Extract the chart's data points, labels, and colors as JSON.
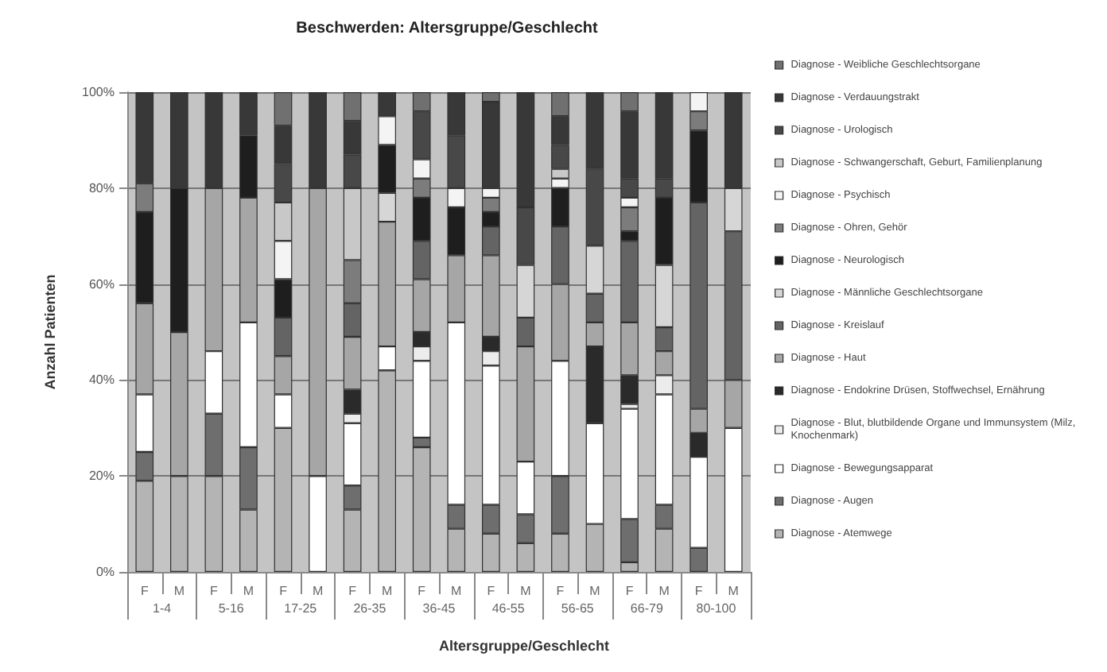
{
  "chart_data": {
    "type": "bar",
    "stacked": true,
    "title": "Beschwerden: Altersgruppe/Geschlecht",
    "xlabel": "Altersgruppe/Geschlecht",
    "ylabel": "Anzahl Patienten",
    "categories": [
      "F",
      "M",
      "F",
      "M",
      "F",
      "M",
      "F",
      "M",
      "F",
      "M",
      "F",
      "M",
      "F",
      "M",
      "F",
      "M",
      "F",
      "M"
    ],
    "annotations": [
      "1-4",
      "5-16",
      "17-25",
      "26-35",
      "36-45",
      "46-55",
      "56-65",
      "66-79",
      "80-100"
    ],
    "ylim": [
      0,
      100
    ],
    "yticks": [
      {
        "value": 0,
        "label": "0%"
      },
      {
        "value": 20,
        "label": "20%"
      },
      {
        "value": 40,
        "label": "40%"
      },
      {
        "value": 60,
        "label": "60%"
      },
      {
        "value": 80,
        "label": "80%"
      },
      {
        "value": 100,
        "label": "100%"
      }
    ],
    "grid": "y",
    "legend": "right",
    "series": [
      {
        "name": "Diagnose - Atemwege",
        "color": "#b4b4b4",
        "values": [
          19,
          20,
          20,
          13,
          30,
          null,
          13,
          42,
          26,
          9,
          8,
          6,
          8,
          10,
          2,
          9,
          null,
          null
        ]
      },
      {
        "name": "Diagnose - Augen",
        "color": "#6e6e6e",
        "values": [
          6,
          null,
          13,
          13,
          null,
          null,
          5,
          null,
          2,
          5,
          6,
          6,
          12,
          null,
          9,
          5,
          5,
          null
        ]
      },
      {
        "name": "Diagnose - Bewegungsapparat",
        "color": "#ffffff",
        "values": [
          12,
          null,
          13,
          26,
          7,
          20,
          13,
          5,
          16,
          38,
          29,
          11,
          24,
          21,
          23,
          23,
          19,
          30
        ]
      },
      {
        "name": "Diagnose - Blut, blutbildende Organe und Immunsystem (Milz, Knochenmark)",
        "color": "#ececec",
        "values": [
          null,
          null,
          null,
          null,
          null,
          null,
          2,
          null,
          3,
          null,
          3,
          null,
          null,
          null,
          1,
          4,
          null,
          null
        ]
      },
      {
        "name": "Diagnose - Endokrine Drüsen, Stoffwechsel, Ernährung",
        "color": "#2a2a2a",
        "values": [
          null,
          null,
          null,
          null,
          null,
          null,
          5,
          null,
          3,
          null,
          3,
          null,
          null,
          16,
          6,
          null,
          5,
          null
        ]
      },
      {
        "name": "Diagnose - Haut",
        "color": "#a6a6a6",
        "values": [
          19,
          30,
          34,
          26,
          8,
          60,
          11,
          26,
          11,
          14,
          17,
          24,
          16,
          5,
          11,
          5,
          5,
          10
        ]
      },
      {
        "name": "Diagnose - Kreislauf",
        "color": "#646464",
        "values": [
          null,
          null,
          null,
          null,
          8,
          null,
          7,
          null,
          8,
          null,
          6,
          6,
          12,
          6,
          17,
          5,
          43,
          31
        ]
      },
      {
        "name": "Diagnose - Männliche Geschlechtsorgane",
        "color": "#d6d6d6",
        "values": [
          null,
          null,
          null,
          null,
          null,
          null,
          null,
          6,
          null,
          null,
          null,
          11,
          null,
          10,
          null,
          13,
          null,
          9
        ]
      },
      {
        "name": "Diagnose - Neurologisch",
        "color": "#1e1e1e",
        "values": [
          19,
          30,
          null,
          13,
          8,
          null,
          null,
          10,
          9,
          10,
          3,
          null,
          8,
          null,
          2,
          14,
          15,
          null
        ]
      },
      {
        "name": "Diagnose - Ohren, Gehör",
        "color": "#7c7c7c",
        "values": [
          6,
          null,
          null,
          null,
          null,
          null,
          9,
          null,
          4,
          null,
          3,
          null,
          null,
          null,
          5,
          null,
          4,
          null
        ]
      },
      {
        "name": "Diagnose - Psychisch",
        "color": "#f4f4f4",
        "values": [
          null,
          null,
          null,
          null,
          8,
          null,
          null,
          6,
          4,
          4,
          2,
          null,
          2,
          null,
          2,
          null,
          4,
          null
        ]
      },
      {
        "name": "Diagnose - Schwangerschaft, Geburt, Familienplanung",
        "color": "#c8c8c8",
        "values": [
          null,
          null,
          null,
          null,
          8,
          null,
          15,
          null,
          null,
          null,
          null,
          null,
          2,
          null,
          null,
          null,
          null,
          null
        ]
      },
      {
        "name": "Diagnose - Urologisch",
        "color": "#484848",
        "values": [
          null,
          null,
          null,
          null,
          8,
          null,
          7,
          null,
          10,
          11,
          null,
          12,
          5,
          16,
          4,
          4,
          null,
          null
        ]
      },
      {
        "name": "Diagnose - Verdauungstrakt",
        "color": "#383838",
        "values": [
          19,
          20,
          20,
          9,
          8,
          20,
          7,
          5,
          null,
          9,
          18,
          24,
          6,
          16,
          14,
          18,
          null,
          20
        ]
      },
      {
        "name": "Diagnose - Weibliche Geschlechtsorgane",
        "color": "#707070",
        "values": [
          null,
          null,
          null,
          null,
          7,
          null,
          6,
          null,
          4,
          null,
          2,
          null,
          5,
          null,
          4,
          null,
          null,
          null
        ]
      }
    ]
  }
}
